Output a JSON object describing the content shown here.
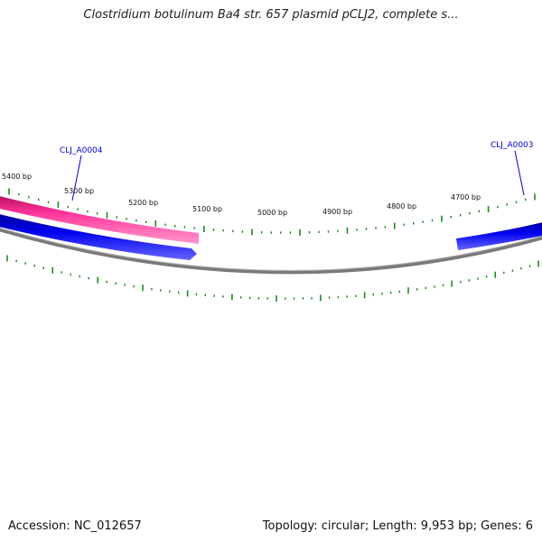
{
  "header": {
    "title": "Clostridium botulinum Ba4 str. 657 plasmid pCLJ2, complete s..."
  },
  "footer": {
    "accession": "Accession: NC_012657",
    "summary": "Topology: circular; Length: 9,953 bp; Genes: 6"
  },
  "ruler": {
    "ticks": [
      {
        "bp": 5400,
        "label": "5400 bp"
      },
      {
        "bp": 5300,
        "label": "5300 bp"
      },
      {
        "bp": 5200,
        "label": "5200 bp"
      },
      {
        "bp": 5100,
        "label": "5100 bp"
      },
      {
        "bp": 5000,
        "label": "5000 bp"
      },
      {
        "bp": 4900,
        "label": "4900 bp"
      },
      {
        "bp": 4800,
        "label": "4800 bp"
      },
      {
        "bp": 4700,
        "label": "4700 bp"
      }
    ]
  },
  "genes": [
    {
      "id": "CLJ_A0004",
      "label": "CLJ_A0004"
    },
    {
      "id": "CLJ_A0003",
      "label": "CLJ_A0003"
    }
  ],
  "colors": {
    "backbone": "#888888",
    "forward_feature": "#ff3399",
    "reverse_feature": "#0000ee",
    "ticks": "#228822",
    "gene_label": "#0000cc"
  }
}
